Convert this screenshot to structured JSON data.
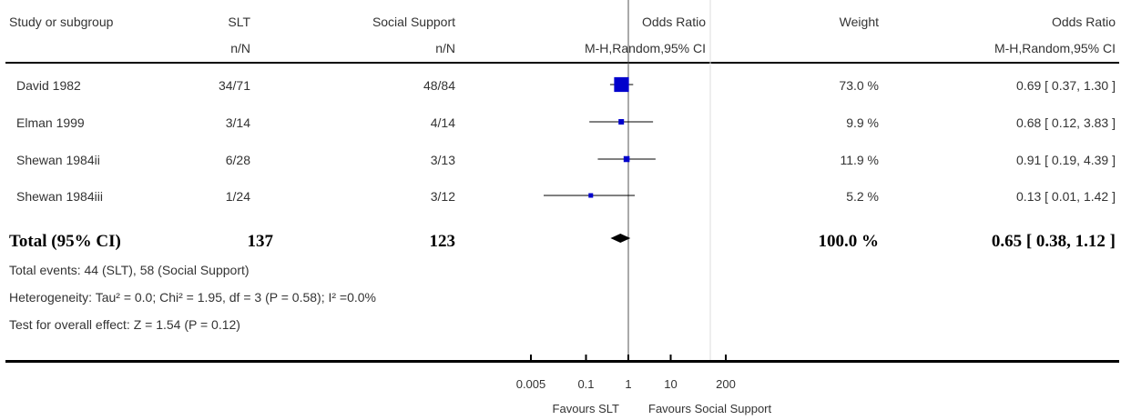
{
  "header": {
    "col_study": "Study or subgroup",
    "col_g1": "SLT",
    "col_g1_sub": "n/N",
    "col_g2": "Social Support",
    "col_g2_sub": "n/N",
    "col_or": "Odds Ratio",
    "col_or_sub": "M-H,Random,95% CI",
    "col_weight": "Weight",
    "col_or2": "Odds Ratio",
    "col_or2_sub": "M-H,Random,95% CI"
  },
  "rows": [
    {
      "study": "David 1982",
      "g1": "34/71",
      "g2": "48/84",
      "weight": "73.0 %",
      "ci": "0.69 [ 0.37, 1.30 ]"
    },
    {
      "study": "Elman 1999",
      "g1": "3/14",
      "g2": "4/14",
      "weight": "9.9 %",
      "ci": "0.68 [ 0.12, 3.83 ]"
    },
    {
      "study": "Shewan 1984ii",
      "g1": "6/28",
      "g2": "3/13",
      "weight": "11.9 %",
      "ci": "0.91 [ 0.19, 4.39 ]"
    },
    {
      "study": "Shewan 1984iii",
      "g1": "1/24",
      "g2": "3/12",
      "weight": "5.2 %",
      "ci": "0.13 [ 0.01, 1.42 ]"
    }
  ],
  "total": {
    "label": "Total (95% CI)",
    "g1": "137",
    "g2": "123",
    "weight": "100.0 %",
    "ci": "0.65 [ 0.38, 1.12 ]"
  },
  "notes": {
    "events": "Total events: 44 (SLT), 58 (Social Support)",
    "heterogeneity": "Heterogeneity: Tau² = 0.0; Chi² = 1.95, df = 3 (P = 0.58); I² =0.0%",
    "overall": "Test for overall effect: Z = 1.54 (P = 0.12)"
  },
  "axis": {
    "ticks": [
      "0.005",
      "0.1",
      "1",
      "10",
      "200"
    ],
    "favours_left": "Favours SLT",
    "favours_right": "Favours Social Support"
  },
  "chart_data": {
    "type": "forest",
    "scale": "log",
    "xlim": [
      0.005,
      200
    ],
    "ticks": [
      0.005,
      0.1,
      1,
      10,
      200
    ],
    "studies": [
      {
        "name": "David 1982",
        "or": 0.69,
        "lo": 0.37,
        "hi": 1.3,
        "weight": 73.0
      },
      {
        "name": "Elman 1999",
        "or": 0.68,
        "lo": 0.12,
        "hi": 3.83,
        "weight": 9.9
      },
      {
        "name": "Shewan 1984ii",
        "or": 0.91,
        "lo": 0.19,
        "hi": 4.39,
        "weight": 11.9
      },
      {
        "name": "Shewan 1984iii",
        "or": 0.13,
        "lo": 0.01,
        "hi": 1.42,
        "weight": 5.2
      }
    ],
    "pooled": {
      "or": 0.65,
      "lo": 0.38,
      "hi": 1.12
    },
    "marker_color": "#0000cc",
    "pooled_color": "#000000"
  }
}
